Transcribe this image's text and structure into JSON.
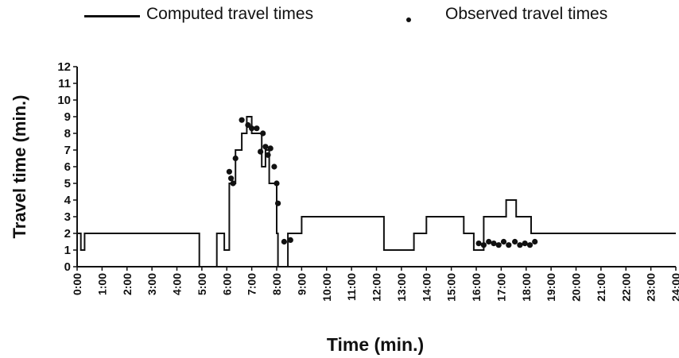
{
  "legend": {
    "computed_label": "Computed travel times",
    "observed_label": "Observed travel times"
  },
  "chart_data": {
    "type": "line",
    "xlabel": "Time (min.)",
    "ylabel": "Travel time (min.)",
    "xlim": [
      0,
      24
    ],
    "ylim": [
      0,
      12
    ],
    "xticks": [
      "0:00",
      "1:00",
      "2:00",
      "3:00",
      "4:00",
      "5:00",
      "6:00",
      "7:00",
      "8:00",
      "9:00",
      "10:00",
      "11:00",
      "12:00",
      "13:00",
      "14:00",
      "15:00",
      "16:00",
      "17:00",
      "18:00",
      "19:00",
      "20:00",
      "21:00",
      "22:00",
      "23:00",
      "24:00"
    ],
    "yticks": [
      "0",
      "1",
      "2",
      "3",
      "4",
      "5",
      "6",
      "7",
      "8",
      "9",
      "10",
      "11",
      "12"
    ],
    "grid": false,
    "legend_position": "top",
    "series": [
      {
        "name": "Computed travel times",
        "style": "step-line",
        "color": "#111111",
        "x": [
          0,
          0.15,
          0.3,
          4.8,
          4.9,
          5.6,
          5.9,
          6.1,
          6.35,
          6.6,
          6.8,
          7.0,
          7.2,
          7.4,
          7.55,
          7.7,
          7.85,
          8.0,
          8.05,
          8.2,
          8.45,
          8.7,
          9.0,
          12.0,
          12.3,
          13.0,
          13.5,
          14.0,
          14.8,
          15.5,
          15.9,
          16.3,
          17.2,
          17.6,
          18.2,
          18.8,
          24.0
        ],
        "y": [
          2,
          1,
          2,
          2,
          0,
          2,
          1,
          5,
          7,
          8,
          9,
          8,
          8,
          6,
          7,
          5,
          5,
          2,
          0,
          0,
          2,
          2,
          3,
          3,
          1,
          1,
          2,
          3,
          3,
          2,
          1,
          3,
          4,
          3,
          2,
          2,
          2
        ]
      },
      {
        "name": "Observed travel times",
        "style": "dots",
        "color": "#111111",
        "x": [
          6.1,
          6.17,
          6.25,
          6.35,
          6.6,
          6.85,
          7.0,
          7.2,
          7.35,
          7.45,
          7.55,
          7.65,
          7.75,
          7.9,
          8.0,
          8.05,
          8.3,
          8.55,
          16.1,
          16.3,
          16.5,
          16.7,
          16.9,
          17.1,
          17.3,
          17.55,
          17.75,
          17.95,
          18.15,
          18.35
        ],
        "y": [
          5.7,
          5.3,
          5.0,
          6.5,
          8.8,
          8.5,
          8.3,
          8.3,
          6.9,
          8.0,
          7.2,
          6.7,
          7.1,
          6.0,
          5.0,
          3.8,
          1.5,
          1.6,
          1.4,
          1.3,
          1.5,
          1.4,
          1.3,
          1.5,
          1.3,
          1.5,
          1.3,
          1.4,
          1.3,
          1.5
        ]
      }
    ]
  }
}
